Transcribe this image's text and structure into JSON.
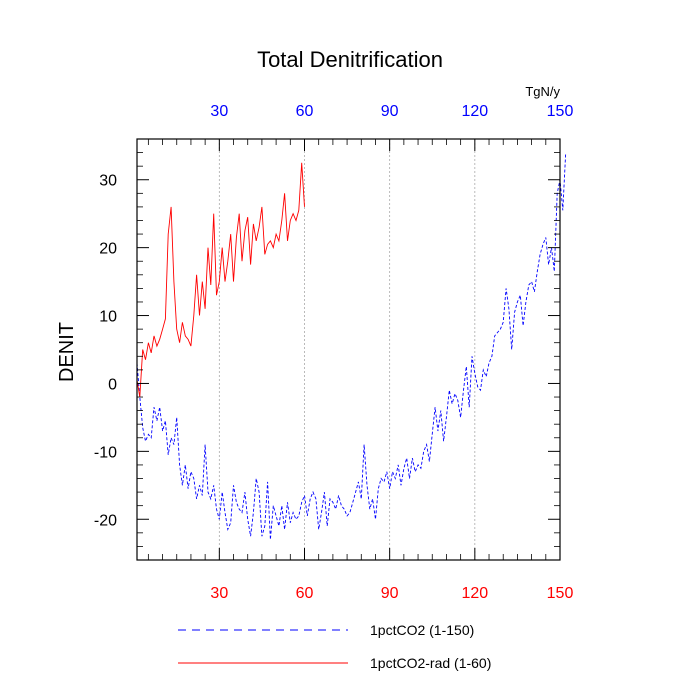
{
  "chart_data": {
    "type": "line",
    "title": "Total Denitrification",
    "ylabel": "DENIT",
    "units_label": "TgN/y",
    "xlim": [
      1,
      150
    ],
    "ylim": [
      -26,
      36
    ],
    "x_ticks": [
      30,
      60,
      90,
      120,
      150
    ],
    "x_tick_labels": [
      "30",
      "60",
      "90",
      "120",
      "150"
    ],
    "y_ticks": [
      -20,
      -10,
      0,
      10,
      20,
      30
    ],
    "y_tick_labels": [
      "-20",
      "-10",
      "0",
      "10",
      "20",
      "30"
    ],
    "grid_x": true,
    "colors": {
      "bottom_axis_labels": "#ff0000",
      "top_axis_labels": "#0000ff",
      "grid": "#aaaaaa"
    },
    "series": [
      {
        "name": "1pctCO2 (1-150)",
        "color": "#0000ff",
        "style": "dashed",
        "values": [
          3.0,
          -2.0,
          -6.5,
          -8.5,
          -7.5,
          -8.0,
          -3.5,
          -5.5,
          -3.5,
          -7.0,
          -5.5,
          -10.5,
          -8.0,
          -9.0,
          -5.0,
          -12.0,
          -15.0,
          -12.0,
          -15.5,
          -13.0,
          -14.0,
          -17.0,
          -15.0,
          -16.5,
          -9.0,
          -16.0,
          -17.0,
          -15.0,
          -18.5,
          -20.0,
          -16.0,
          -19.0,
          -21.5,
          -20.5,
          -15.0,
          -17.5,
          -18.5,
          -19.0,
          -16.0,
          -20.0,
          -22.5,
          -19.0,
          -14.0,
          -16.0,
          -22.5,
          -21.0,
          -14.5,
          -23.0,
          -18.0,
          -19.5,
          -21.0,
          -18.0,
          -21.5,
          -17.5,
          -20.5,
          -19.0,
          -20.0,
          -19.5,
          -17.5,
          -16.5,
          -19.5,
          -17.0,
          -16.0,
          -17.0,
          -21.5,
          -19.0,
          -16.0,
          -21.0,
          -17.0,
          -17.5,
          -18.5,
          -16.5,
          -18.0,
          -18.5,
          -19.5,
          -19.0,
          -17.5,
          -16.0,
          -14.5,
          -17.0,
          -9.0,
          -15.0,
          -18.5,
          -17.0,
          -20.0,
          -15.5,
          -14.0,
          -14.5,
          -13.0,
          -15.5,
          -13.0,
          -14.0,
          -12.0,
          -15.0,
          -12.5,
          -11.0,
          -14.0,
          -11.0,
          -13.0,
          -12.0,
          -12.5,
          -10.0,
          -9.0,
          -11.5,
          -7.5,
          -3.5,
          -7.0,
          -4.0,
          -8.5,
          -5.0,
          -1.0,
          -3.0,
          -1.5,
          -2.5,
          -5.0,
          -1.0,
          2.5,
          -3.5,
          4.0,
          1.5,
          -0.5,
          -1.0,
          2.0,
          1.0,
          3.0,
          4.0,
          7.0,
          7.5,
          8.0,
          9.0,
          14.0,
          11.0,
          5.0,
          10.5,
          12.0,
          13.0,
          8.5,
          12.0,
          14.5,
          15.0,
          13.5,
          16.5,
          19.0,
          20.5,
          21.5,
          17.5,
          20.0,
          16.5,
          28.0,
          30.0,
          25.5,
          34.0
        ]
      },
      {
        "name": "1pctCO2-rad (1-60)",
        "color": "#ff0000",
        "style": "solid",
        "values": [
          0.5,
          -2.0,
          5.0,
          3.5,
          6.0,
          4.5,
          7.0,
          5.5,
          6.5,
          8.0,
          9.5,
          22.0,
          26.0,
          15.0,
          8.0,
          6.0,
          9.0,
          7.0,
          6.5,
          5.5,
          10.0,
          16.0,
          10.0,
          15.0,
          11.0,
          20.0,
          14.5,
          25.0,
          13.0,
          15.0,
          20.0,
          15.0,
          18.0,
          22.0,
          15.0,
          21.5,
          25.0,
          18.0,
          22.5,
          24.5,
          17.5,
          23.5,
          21.0,
          23.0,
          26.0,
          19.0,
          20.5,
          21.0,
          20.0,
          22.0,
          21.0,
          24.0,
          28.0,
          21.0,
          24.0,
          25.0,
          24.0,
          25.5,
          32.5,
          26.0
        ]
      }
    ],
    "legend_placement": "bottom"
  }
}
